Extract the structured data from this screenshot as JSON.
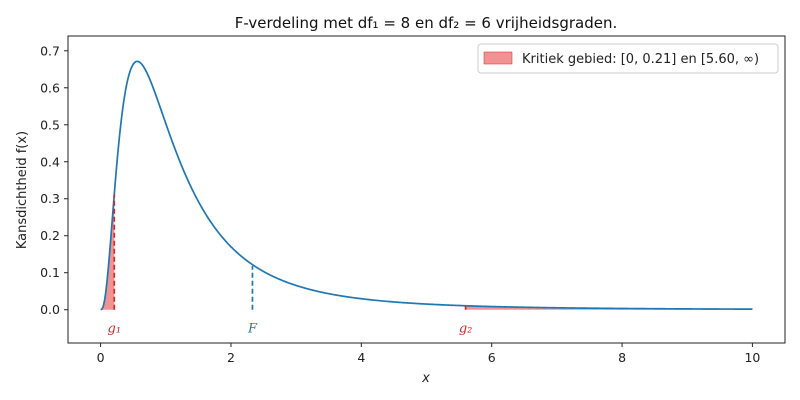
{
  "chart_data": {
    "type": "line",
    "title": "F-verdeling met df₁ = 8 en df₂ = 6 vrijheidsgraden.",
    "xlabel": "x",
    "ylabel": "Kansdichtheid f(x)",
    "xlim": [
      -0.5,
      10.5
    ],
    "ylim": [
      -0.09,
      0.74
    ],
    "x_ticks": [
      0,
      2,
      4,
      6,
      8,
      10
    ],
    "y_ticks": [
      0.0,
      0.1,
      0.2,
      0.3,
      0.4,
      0.5,
      0.6,
      0.7
    ],
    "grid": false,
    "df1": 8,
    "df2": 6,
    "series": [
      {
        "x": [
          0,
          0.1,
          0.2,
          0.3,
          0.4,
          0.5,
          0.6,
          0.8,
          1.0,
          1.2,
          1.5,
          2.0,
          2.5,
          3.0,
          4.0,
          5.0,
          6.0,
          8.0,
          10.0
        ],
        "values": [
          0.0,
          0.1,
          0.31,
          0.5,
          0.62,
          0.668,
          0.67,
          0.62,
          0.54,
          0.46,
          0.35,
          0.22,
          0.145,
          0.098,
          0.048,
          0.025,
          0.0145,
          0.0058,
          0.0028
        ]
      }
    ],
    "critical_region": {
      "legend": "Kritiek gebied: [0, 0.21] en [5.60, ∞)",
      "lower": [
        0,
        0.21
      ],
      "upper_start": 5.6,
      "color": "#f08080"
    },
    "markers": [
      {
        "label": "g₁",
        "x": 0.21,
        "color": "#d62728"
      },
      {
        "label": "F",
        "x": 2.33,
        "color": "#1f77b4"
      },
      {
        "label": "g₂",
        "x": 5.6,
        "color": "#d62728"
      }
    ],
    "line_color": "#1f77b4",
    "legend_position": "top-right"
  }
}
